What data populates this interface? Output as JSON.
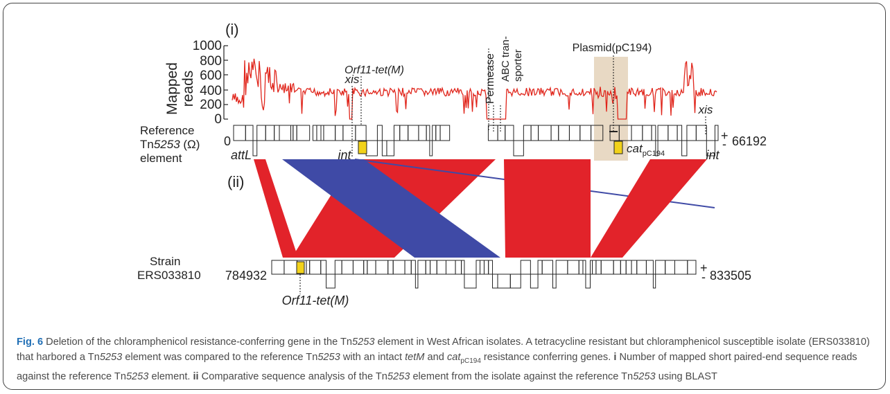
{
  "panel_i": {
    "label": "(i)",
    "y_axis_label_line1": "Mapped",
    "y_axis_label_line2": "reads",
    "y_ticks": [
      "1000",
      "800",
      "600",
      "400",
      "200",
      "0"
    ],
    "annotations": {
      "orf11_tetm": "Orf11-tet(M)",
      "xis_left": "xis",
      "permease": "Permease",
      "abc_line1": "ABC tran-",
      "abc_line2": "sporter",
      "plasmid": "Plasmid(pC194)",
      "xis_right": "xis"
    }
  },
  "reference": {
    "label_line1": "Reference",
    "label_line2_prefix": "Tn",
    "label_line2_italic": "5253",
    "label_line2_suffix": " (Ω)",
    "label_line3": "element",
    "start": "0",
    "end": "66192",
    "plus": "+",
    "minus": "-",
    "attL": "attL",
    "int_left": "int",
    "cat": "cat",
    "cat_sub": "pC194",
    "int_right": "int"
  },
  "panel_ii": {
    "label": "(ii)"
  },
  "strain": {
    "label_line1": "Strain",
    "label_line2": "ERS033810",
    "start": "784932",
    "end": "833505",
    "plus": "+",
    "minus": "-",
    "orf_label": "Orf11-tet(M)"
  },
  "caption": {
    "fig_label": "Fig. 6",
    "t1": " Deletion of the chloramphenicol resistance-conferring gene in the Tn",
    "t1_it": "5253",
    "t2": " element in West African isolates. A tetracycline resistant but chloramphenicol susceptible isolate (ERS033810) that harbored a Tn",
    "t2_it": "5253",
    "t3": " element was compared to the reference Tn",
    "t3_it": "5253",
    "t4": " with an intact ",
    "t4_it": "tetM",
    "t5": " and ",
    "t5_it": "cat",
    "t5_sub": "pC194",
    "t6": " resistance conferring genes. ",
    "part_i": "i",
    "t7": " Number of mapped short paired-end sequence reads against the reference Tn",
    "t7_it": "5253",
    "t8": " element. ",
    "part_ii": "ii",
    "t9": " Comparative sequence analysis of the Tn",
    "t9_it": "5253",
    "t10": " element from the isolate against the reference Tn",
    "t10_it": "5253",
    "t11": " using BLAST"
  },
  "colors": {
    "coverage_line": "#e0251b",
    "match_red": "#e2232a",
    "match_blue": "#3f4aa6",
    "highlight_box": "#e8d9c4",
    "gene_yellow": "#f2d21a",
    "figure_label_blue": "#1f6eb5"
  }
}
